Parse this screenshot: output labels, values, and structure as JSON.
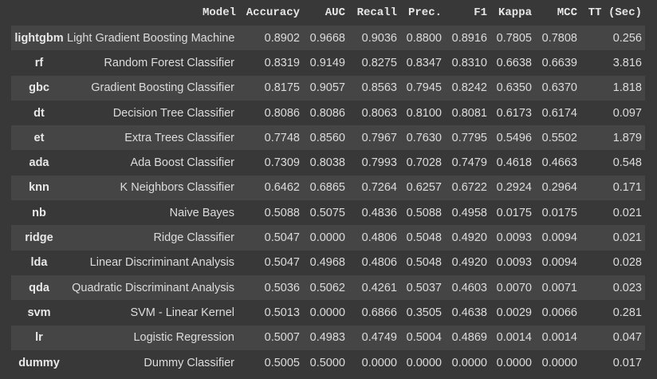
{
  "columns": [
    "",
    "Model",
    "Accuracy",
    "AUC",
    "Recall",
    "Prec.",
    "F1",
    "Kappa",
    "MCC",
    "TT (Sec)"
  ],
  "rows": [
    {
      "id": "lightgbm",
      "model": "Light Gradient Boosting Machine",
      "accuracy": "0.8902",
      "auc": "0.9668",
      "recall": "0.9036",
      "prec": "0.8800",
      "f1": "0.8916",
      "kappa": "0.7805",
      "mcc": "0.7808",
      "tt": "0.256"
    },
    {
      "id": "rf",
      "model": "Random Forest Classifier",
      "accuracy": "0.8319",
      "auc": "0.9149",
      "recall": "0.8275",
      "prec": "0.8347",
      "f1": "0.8310",
      "kappa": "0.6638",
      "mcc": "0.6639",
      "tt": "3.816"
    },
    {
      "id": "gbc",
      "model": "Gradient Boosting Classifier",
      "accuracy": "0.8175",
      "auc": "0.9057",
      "recall": "0.8563",
      "prec": "0.7945",
      "f1": "0.8242",
      "kappa": "0.6350",
      "mcc": "0.6370",
      "tt": "1.818"
    },
    {
      "id": "dt",
      "model": "Decision Tree Classifier",
      "accuracy": "0.8086",
      "auc": "0.8086",
      "recall": "0.8063",
      "prec": "0.8100",
      "f1": "0.8081",
      "kappa": "0.6173",
      "mcc": "0.6174",
      "tt": "0.097"
    },
    {
      "id": "et",
      "model": "Extra Trees Classifier",
      "accuracy": "0.7748",
      "auc": "0.8560",
      "recall": "0.7967",
      "prec": "0.7630",
      "f1": "0.7795",
      "kappa": "0.5496",
      "mcc": "0.5502",
      "tt": "1.879"
    },
    {
      "id": "ada",
      "model": "Ada Boost Classifier",
      "accuracy": "0.7309",
      "auc": "0.8038",
      "recall": "0.7993",
      "prec": "0.7028",
      "f1": "0.7479",
      "kappa": "0.4618",
      "mcc": "0.4663",
      "tt": "0.548"
    },
    {
      "id": "knn",
      "model": "K Neighbors Classifier",
      "accuracy": "0.6462",
      "auc": "0.6865",
      "recall": "0.7264",
      "prec": "0.6257",
      "f1": "0.6722",
      "kappa": "0.2924",
      "mcc": "0.2964",
      "tt": "0.171"
    },
    {
      "id": "nb",
      "model": "Naive Bayes",
      "accuracy": "0.5088",
      "auc": "0.5075",
      "recall": "0.4836",
      "prec": "0.5088",
      "f1": "0.4958",
      "kappa": "0.0175",
      "mcc": "0.0175",
      "tt": "0.021"
    },
    {
      "id": "ridge",
      "model": "Ridge Classifier",
      "accuracy": "0.5047",
      "auc": "0.0000",
      "recall": "0.4806",
      "prec": "0.5048",
      "f1": "0.4920",
      "kappa": "0.0093",
      "mcc": "0.0094",
      "tt": "0.021"
    },
    {
      "id": "lda",
      "model": "Linear Discriminant Analysis",
      "accuracy": "0.5047",
      "auc": "0.4968",
      "recall": "0.4806",
      "prec": "0.5048",
      "f1": "0.4920",
      "kappa": "0.0093",
      "mcc": "0.0094",
      "tt": "0.028"
    },
    {
      "id": "qda",
      "model": "Quadratic Discriminant Analysis",
      "accuracy": "0.5036",
      "auc": "0.5062",
      "recall": "0.4261",
      "prec": "0.5037",
      "f1": "0.4603",
      "kappa": "0.0070",
      "mcc": "0.0071",
      "tt": "0.023"
    },
    {
      "id": "svm",
      "model": "SVM - Linear Kernel",
      "accuracy": "0.5013",
      "auc": "0.0000",
      "recall": "0.6866",
      "prec": "0.3505",
      "f1": "0.4638",
      "kappa": "0.0029",
      "mcc": "0.0066",
      "tt": "0.281"
    },
    {
      "id": "lr",
      "model": "Logistic Regression",
      "accuracy": "0.5007",
      "auc": "0.4983",
      "recall": "0.4749",
      "prec": "0.5004",
      "f1": "0.4869",
      "kappa": "0.0014",
      "mcc": "0.0014",
      "tt": "0.047"
    },
    {
      "id": "dummy",
      "model": "Dummy Classifier",
      "accuracy": "0.5005",
      "auc": "0.5000",
      "recall": "0.0000",
      "prec": "0.0000",
      "f1": "0.0000",
      "kappa": "0.0000",
      "mcc": "0.0000",
      "tt": "0.017"
    }
  ]
}
